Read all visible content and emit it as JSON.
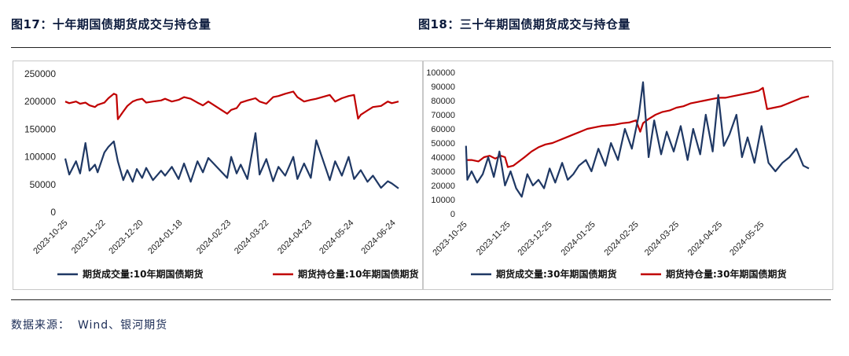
{
  "figures": {
    "left_title": "图17：十年期国债期货成交与持仓量",
    "right_title": "图18：三十年期国债期货成交与持仓量"
  },
  "source": {
    "label": "数据来源：",
    "value": "Wind、银河期货"
  },
  "colors": {
    "volume": "#1f3864",
    "open_interest": "#c00000",
    "title": "#0b1a3c"
  },
  "chart_data": [
    {
      "type": "line",
      "title": "",
      "ylim": [
        0,
        250000
      ],
      "yticks": [
        0,
        50000,
        100000,
        150000,
        200000,
        250000
      ],
      "ytick_labels": [
        "0",
        "50000",
        "100000",
        "150000",
        "200000",
        "250000"
      ],
      "xlim": [
        "2023-10-23",
        "2024-06-26"
      ],
      "xtick_labels": [
        "2023-10-25",
        "2023-11-22",
        "2023-12-20",
        "2024-01-18",
        "2024-02-23",
        "2024-03-22",
        "2024-04-23",
        "2024-05-24",
        "2024-06-24"
      ],
      "legend_position": "bottom",
      "series": [
        {
          "name": "期货成交量:10年期国债期货",
          "x": [
            "2023-10-23",
            "2023-10-26",
            "2023-10-31",
            "2023-11-03",
            "2023-11-07",
            "2023-11-10",
            "2023-11-14",
            "2023-11-16",
            "2023-11-21",
            "2023-11-24",
            "2023-11-28",
            "2023-12-01",
            "2023-12-05",
            "2023-12-08",
            "2023-12-12",
            "2023-12-15",
            "2023-12-19",
            "2023-12-22",
            "2023-12-27",
            "2024-01-02",
            "2024-01-05",
            "2024-01-10",
            "2024-01-15",
            "2024-01-19",
            "2024-01-24",
            "2024-01-29",
            "2024-02-02",
            "2024-02-06",
            "2024-02-20",
            "2024-02-23",
            "2024-02-27",
            "2024-03-01",
            "2024-03-06",
            "2024-03-12",
            "2024-03-15",
            "2024-03-20",
            "2024-03-25",
            "2024-03-29",
            "2024-04-03",
            "2024-04-09",
            "2024-04-12",
            "2024-04-17",
            "2024-04-22",
            "2024-04-26",
            "2024-05-06",
            "2024-05-10",
            "2024-05-15",
            "2024-05-20",
            "2024-05-24",
            "2024-05-29",
            "2024-06-03",
            "2024-06-07",
            "2024-06-13",
            "2024-06-18",
            "2024-06-21",
            "2024-06-26"
          ],
          "values": [
            97000,
            68000,
            92000,
            70000,
            125000,
            75000,
            86000,
            72000,
            108000,
            118000,
            128000,
            92000,
            58000,
            76000,
            55000,
            78000,
            62000,
            80000,
            58000,
            75000,
            66000,
            82000,
            60000,
            88000,
            55000,
            92000,
            72000,
            98000,
            62000,
            100000,
            70000,
            86000,
            60000,
            143000,
            68000,
            96000,
            56000,
            82000,
            66000,
            100000,
            60000,
            88000,
            62000,
            130000,
            58000,
            92000,
            66000,
            100000,
            60000,
            76000,
            55000,
            66000,
            44000,
            56000,
            52000,
            43000
          ]
        },
        {
          "name": "期货持仓量:10年期国债期货",
          "x": [
            "2023-10-23",
            "2023-10-26",
            "2023-10-31",
            "2023-11-03",
            "2023-11-07",
            "2023-11-10",
            "2023-11-14",
            "2023-11-16",
            "2023-11-21",
            "2023-11-24",
            "2023-11-28",
            "2023-11-30",
            "2023-12-01",
            "2023-12-05",
            "2023-12-08",
            "2023-12-12",
            "2023-12-15",
            "2023-12-19",
            "2023-12-22",
            "2023-12-27",
            "2024-01-02",
            "2024-01-05",
            "2024-01-10",
            "2024-01-15",
            "2024-01-19",
            "2024-01-24",
            "2024-01-29",
            "2024-02-02",
            "2024-02-06",
            "2024-02-20",
            "2024-02-23",
            "2024-02-27",
            "2024-03-01",
            "2024-03-06",
            "2024-03-12",
            "2024-03-15",
            "2024-03-20",
            "2024-03-25",
            "2024-03-29",
            "2024-04-03",
            "2024-04-09",
            "2024-04-12",
            "2024-04-17",
            "2024-04-22",
            "2024-04-26",
            "2024-05-06",
            "2024-05-10",
            "2024-05-15",
            "2024-05-20",
            "2024-05-24",
            "2024-05-27",
            "2024-05-29",
            "2024-06-03",
            "2024-06-07",
            "2024-06-13",
            "2024-06-18",
            "2024-06-21",
            "2024-06-26"
          ],
          "values": [
            200000,
            197000,
            200000,
            196000,
            198000,
            193000,
            190000,
            194000,
            198000,
            206000,
            214000,
            212000,
            168000,
            182000,
            192000,
            200000,
            203000,
            205000,
            198000,
            200000,
            202000,
            205000,
            200000,
            203000,
            208000,
            205000,
            198000,
            193000,
            200000,
            178000,
            185000,
            188000,
            198000,
            202000,
            206000,
            200000,
            196000,
            208000,
            210000,
            214000,
            218000,
            208000,
            200000,
            203000,
            205000,
            212000,
            200000,
            206000,
            210000,
            212000,
            169000,
            176000,
            184000,
            190000,
            192000,
            200000,
            197000,
            200000
          ]
        }
      ]
    },
    {
      "type": "line",
      "title": "",
      "ylim": [
        0,
        100000
      ],
      "yticks": [
        0,
        10000,
        20000,
        30000,
        40000,
        50000,
        60000,
        70000,
        80000,
        90000,
        100000
      ],
      "ytick_labels": [
        "0",
        "10000",
        "20000",
        "30000",
        "40000",
        "50000",
        "60000",
        "70000",
        "80000",
        "90000",
        "100000"
      ],
      "xlim": [
        "2023-10-23",
        "2024-06-26"
      ],
      "xtick_labels": [
        "2023-10-25",
        "2023-11-25",
        "2023-12-25",
        "2024-01-25",
        "2024-02-25",
        "2024-03-25",
        "2024-04-25",
        "2024-05-25"
      ],
      "legend_position": "bottom",
      "series": [
        {
          "name": "期货成交量:30年期国债期货",
          "x": [
            "2023-10-24",
            "2023-10-25",
            "2023-10-28",
            "2023-11-01",
            "2023-11-05",
            "2023-11-09",
            "2023-11-13",
            "2023-11-17",
            "2023-11-21",
            "2023-11-25",
            "2023-11-29",
            "2023-12-03",
            "2023-12-07",
            "2023-12-11",
            "2023-12-15",
            "2023-12-19",
            "2023-12-23",
            "2023-12-27",
            "2024-01-01",
            "2024-01-05",
            "2024-01-09",
            "2024-01-13",
            "2024-01-18",
            "2024-01-22",
            "2024-01-27",
            "2024-02-01",
            "2024-02-05",
            "2024-02-10",
            "2024-02-15",
            "2024-02-20",
            "2024-02-25",
            "2024-02-28",
            "2024-03-03",
            "2024-03-07",
            "2024-03-12",
            "2024-03-16",
            "2024-03-21",
            "2024-03-26",
            "2024-03-31",
            "2024-04-04",
            "2024-04-09",
            "2024-04-13",
            "2024-04-18",
            "2024-04-22",
            "2024-04-26",
            "2024-04-30",
            "2024-05-05",
            "2024-05-09",
            "2024-05-13",
            "2024-05-18",
            "2024-05-23",
            "2024-05-28",
            "2024-06-02",
            "2024-06-07",
            "2024-06-12",
            "2024-06-17",
            "2024-06-22",
            "2024-06-26"
          ],
          "values": [
            48000,
            24000,
            30000,
            22000,
            28000,
            40000,
            26000,
            44000,
            20000,
            30000,
            18000,
            12000,
            28000,
            20000,
            24000,
            18000,
            32000,
            22000,
            36000,
            24000,
            28000,
            34000,
            38000,
            30000,
            46000,
            34000,
            50000,
            38000,
            60000,
            46000,
            70000,
            93000,
            40000,
            66000,
            42000,
            58000,
            44000,
            62000,
            38000,
            60000,
            42000,
            70000,
            44000,
            84000,
            48000,
            56000,
            70000,
            40000,
            54000,
            36000,
            62000,
            36000,
            30000,
            36000,
            40000,
            46000,
            34000,
            32000
          ]
        },
        {
          "name": "期货持仓量:30年期国债期货",
          "x": [
            "2023-10-24",
            "2023-10-28",
            "2023-11-02",
            "2023-11-06",
            "2023-11-10",
            "2023-11-14",
            "2023-11-18",
            "2023-11-21",
            "2023-11-23",
            "2023-11-27",
            "2023-12-01",
            "2023-12-05",
            "2023-12-10",
            "2023-12-15",
            "2023-12-20",
            "2023-12-25",
            "2023-12-30",
            "2024-01-04",
            "2024-01-09",
            "2024-01-14",
            "2024-01-19",
            "2024-01-24",
            "2024-01-29",
            "2024-02-03",
            "2024-02-08",
            "2024-02-13",
            "2024-02-18",
            "2024-02-23",
            "2024-02-26",
            "2024-02-28",
            "2024-03-03",
            "2024-03-08",
            "2024-03-13",
            "2024-03-18",
            "2024-03-23",
            "2024-03-28",
            "2024-04-02",
            "2024-04-07",
            "2024-04-12",
            "2024-04-17",
            "2024-04-22",
            "2024-04-27",
            "2024-05-02",
            "2024-05-07",
            "2024-05-12",
            "2024-05-17",
            "2024-05-21",
            "2024-05-24",
            "2024-05-27",
            "2024-06-01",
            "2024-06-06",
            "2024-06-11",
            "2024-06-16",
            "2024-06-21",
            "2024-06-26"
          ],
          "values": [
            38000,
            38000,
            37000,
            40000,
            41000,
            39000,
            41000,
            40000,
            33000,
            34000,
            37000,
            40000,
            44000,
            47000,
            49000,
            50000,
            52000,
            54000,
            56000,
            58000,
            60000,
            61000,
            62000,
            62500,
            63000,
            64000,
            64500,
            66000,
            58000,
            64000,
            67000,
            70000,
            72000,
            73000,
            75000,
            76000,
            78000,
            79000,
            80000,
            81000,
            82000,
            82000,
            83000,
            84000,
            85000,
            86000,
            87000,
            89000,
            74000,
            75000,
            76000,
            78000,
            80000,
            82000,
            83000
          ]
        }
      ]
    }
  ]
}
